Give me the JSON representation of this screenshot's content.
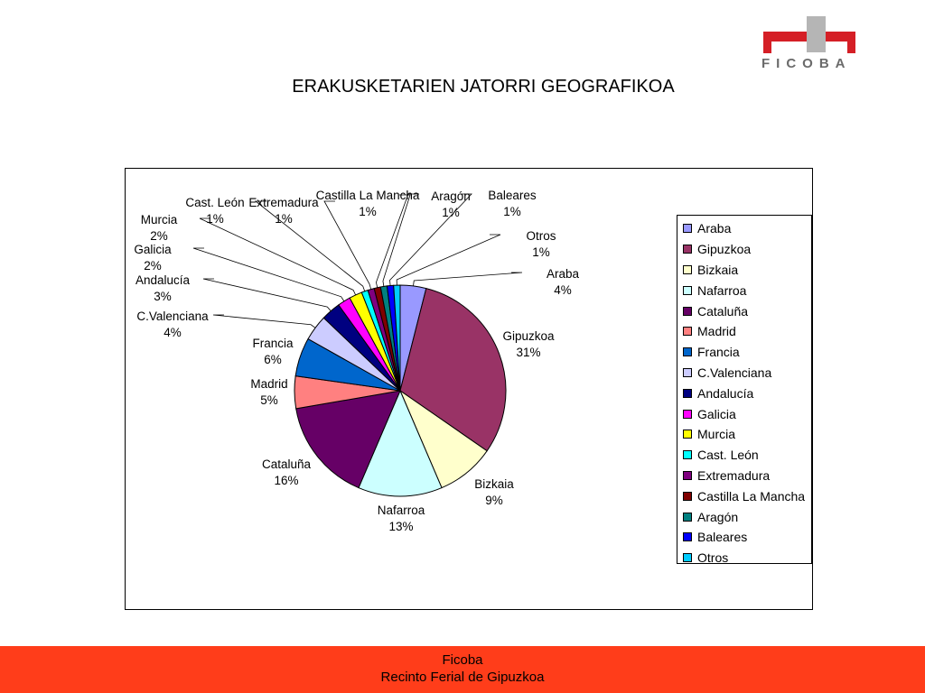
{
  "logo": {
    "text": "FICOBA",
    "colors": {
      "red": "#d51f26",
      "gray": "#b5b5b5"
    }
  },
  "page": {
    "title": "ERAKUSKETARIEN JATORRI GEOGRAFIKOA"
  },
  "footer": {
    "line1": "Ficoba",
    "line2": "Recinto Ferial de Gipuzkoa",
    "color": "#ff3d1a"
  },
  "chart_data": {
    "type": "pie",
    "title": "",
    "legend_position": "right",
    "slices": [
      {
        "label": "Araba",
        "percent": 4,
        "percent_label": "4%",
        "color": "#9999ff"
      },
      {
        "label": "Gipuzkoa",
        "percent": 31,
        "percent_label": "31%",
        "color": "#993366"
      },
      {
        "label": "Bizkaia",
        "percent": 9,
        "percent_label": "9%",
        "color": "#ffffcc"
      },
      {
        "label": "Nafarroa",
        "percent": 13,
        "percent_label": "13%",
        "color": "#ccffff"
      },
      {
        "label": "Cataluña",
        "percent": 16,
        "percent_label": "16%",
        "color": "#660066"
      },
      {
        "label": "Madrid",
        "percent": 5,
        "percent_label": "5%",
        "color": "#ff8080"
      },
      {
        "label": "Francia",
        "percent": 6,
        "percent_label": "6%",
        "color": "#0066cc"
      },
      {
        "label": "C.Valenciana",
        "percent": 4,
        "percent_label": "4%",
        "color": "#ccccff"
      },
      {
        "label": "Andalucía",
        "percent": 3,
        "percent_label": "3%",
        "color": "#000080"
      },
      {
        "label": "Galicia",
        "percent": 2,
        "percent_label": "2%",
        "color": "#ff00ff"
      },
      {
        "label": "Murcia",
        "percent": 2,
        "percent_label": "2%",
        "color": "#ffff00"
      },
      {
        "label": "Cast. León",
        "percent": 1,
        "percent_label": "1%",
        "color": "#00ffff"
      },
      {
        "label": "Extremadura",
        "percent": 1,
        "percent_label": "1%",
        "color": "#800080"
      },
      {
        "label": "Castilla La Mancha",
        "percent": 1,
        "percent_label": "1%",
        "color": "#800000"
      },
      {
        "label": "Aragón",
        "percent": 1,
        "percent_label": "1%",
        "color": "#008080"
      },
      {
        "label": "Baleares",
        "percent": 1,
        "percent_label": "1%",
        "color": "#0000ff"
      },
      {
        "label": "Otros",
        "percent": 1,
        "percent_label": "1%",
        "color": "#00ccff"
      }
    ]
  }
}
